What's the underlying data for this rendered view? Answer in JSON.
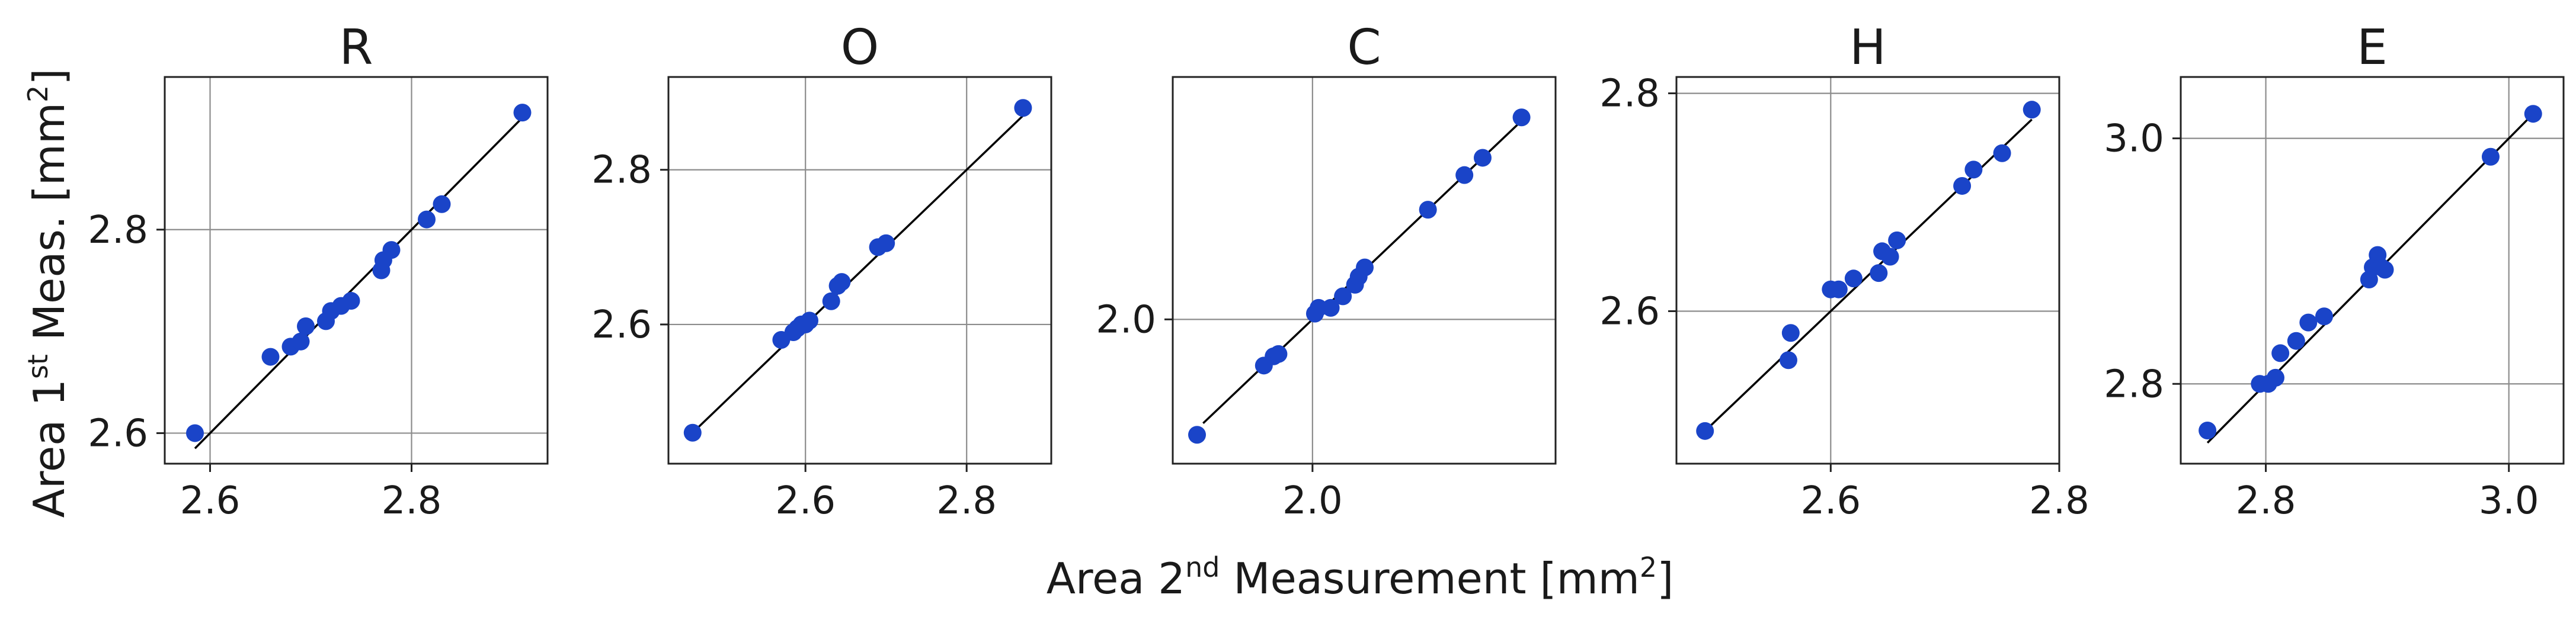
{
  "figure": {
    "xlabel_main": "Area 2",
    "xlabel_sup": "nd",
    "xlabel_rest": " Measurement [mm",
    "xlabel_sup2": "2",
    "xlabel_close": "]",
    "ylabel_main": "Area 1",
    "ylabel_sup": "st",
    "ylabel_rest": " Meas. [mm",
    "ylabel_sup2": "2",
    "ylabel_close": "]",
    "point_color": "#1a44c8",
    "line_color": "#000000"
  },
  "chart_data": [
    {
      "type": "scatter",
      "title": "R",
      "xlim": [
        2.555,
        2.935
      ],
      "ylim": [
        2.57,
        2.95
      ],
      "xticks": [
        2.6,
        2.8
      ],
      "yticks": [
        2.6,
        2.8
      ],
      "xtick_labels": [
        "2.6",
        "2.8"
      ],
      "ytick_labels": [
        "2.6",
        "2.8"
      ],
      "identity_line": [
        2.585,
        2.91
      ],
      "x": [
        2.585,
        2.66,
        2.68,
        2.69,
        2.695,
        2.715,
        2.72,
        2.73,
        2.74,
        2.77,
        2.772,
        2.78,
        2.815,
        2.83,
        2.91
      ],
      "y": [
        2.6,
        2.675,
        2.685,
        2.69,
        2.705,
        2.71,
        2.72,
        2.725,
        2.73,
        2.76,
        2.77,
        2.78,
        2.81,
        2.825,
        2.915
      ]
    },
    {
      "type": "scatter",
      "title": "O",
      "xlim": [
        2.43,
        2.905
      ],
      "ylim": [
        2.42,
        2.92
      ],
      "xticks": [
        2.6,
        2.8
      ],
      "yticks": [
        2.6,
        2.8
      ],
      "xtick_labels": [
        "2.6",
        "2.8"
      ],
      "ytick_labels": [
        "2.6",
        "2.8"
      ],
      "identity_line": [
        2.46,
        2.87
      ],
      "x": [
        2.46,
        2.57,
        2.585,
        2.59,
        2.595,
        2.6,
        2.605,
        2.632,
        2.64,
        2.645,
        2.69,
        2.7,
        2.87
      ],
      "y": [
        2.46,
        2.58,
        2.59,
        2.595,
        2.6,
        2.6,
        2.605,
        2.63,
        2.65,
        2.655,
        2.7,
        2.705,
        2.88
      ]
    },
    {
      "type": "scatter",
      "title": "C",
      "xlim": [
        1.885,
        2.2
      ],
      "ylim": [
        1.875,
        2.21
      ],
      "xticks": [
        2.0
      ],
      "yticks": [
        2.0
      ],
      "xtick_labels": [
        "2.0"
      ],
      "ytick_labels": [
        "2.0"
      ],
      "identity_line": [
        1.91,
        2.172
      ],
      "x": [
        1.905,
        1.96,
        1.968,
        1.972,
        2.002,
        2.005,
        2.015,
        2.025,
        2.035,
        2.038,
        2.043,
        2.095,
        2.125,
        2.14,
        2.172
      ],
      "y": [
        1.9,
        1.96,
        1.968,
        1.97,
        2.005,
        2.01,
        2.01,
        2.02,
        2.03,
        2.037,
        2.045,
        2.095,
        2.125,
        2.14,
        2.175
      ]
    },
    {
      "type": "scatter",
      "title": "H",
      "xlim": [
        2.465,
        2.8
      ],
      "ylim": [
        2.46,
        2.815
      ],
      "xticks": [
        2.6,
        2.8
      ],
      "yticks": [
        2.6,
        2.8
      ],
      "xtick_labels": [
        "2.6",
        "2.8"
      ],
      "ytick_labels": [
        "2.6",
        "2.8"
      ],
      "identity_line": [
        2.49,
        2.776
      ],
      "x": [
        2.49,
        2.563,
        2.565,
        2.6,
        2.607,
        2.62,
        2.642,
        2.645,
        2.652,
        2.658,
        2.715,
        2.725,
        2.75,
        2.776
      ],
      "y": [
        2.49,
        2.555,
        2.58,
        2.62,
        2.62,
        2.63,
        2.635,
        2.655,
        2.65,
        2.665,
        2.715,
        2.73,
        2.745,
        2.785
      ]
    },
    {
      "type": "scatter",
      "title": "E",
      "xlim": [
        2.73,
        3.045
      ],
      "ylim": [
        2.735,
        3.05
      ],
      "xticks": [
        2.8,
        3.0
      ],
      "yticks": [
        2.8,
        3.0
      ],
      "xtick_labels": [
        "2.8",
        "3.0"
      ],
      "ytick_labels": [
        "2.8",
        "3.0"
      ],
      "identity_line": [
        2.752,
        3.02
      ],
      "x": [
        2.752,
        2.795,
        2.802,
        2.808,
        2.812,
        2.825,
        2.835,
        2.848,
        2.885,
        2.888,
        2.892,
        2.895,
        2.898,
        2.985,
        3.02
      ],
      "y": [
        2.762,
        2.8,
        2.8,
        2.805,
        2.825,
        2.835,
        2.85,
        2.855,
        2.885,
        2.895,
        2.905,
        2.895,
        2.893,
        2.985,
        3.02
      ]
    }
  ]
}
